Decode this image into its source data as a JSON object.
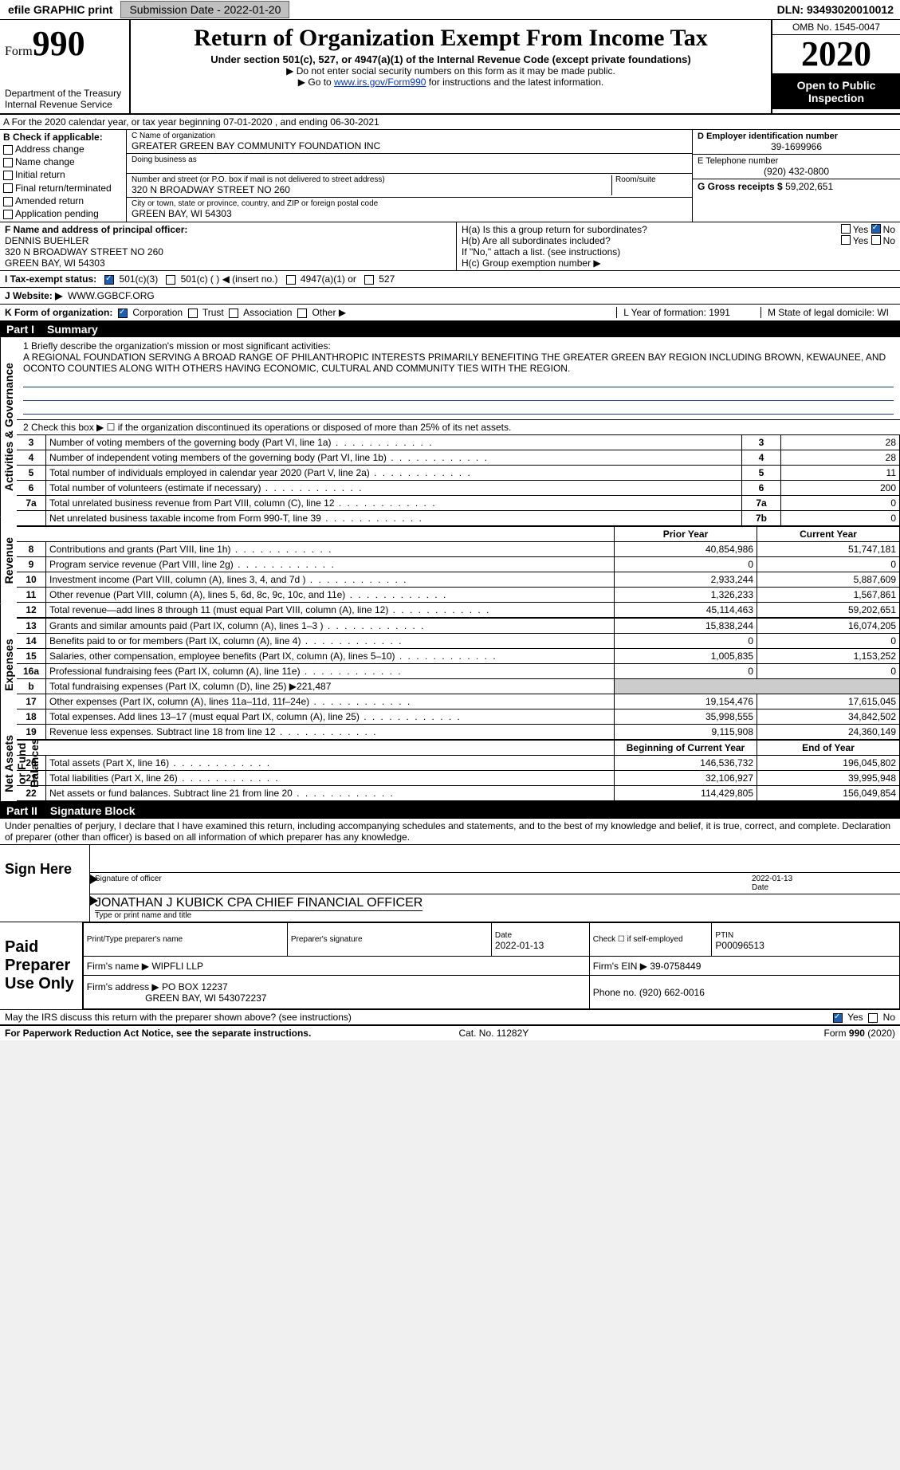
{
  "topbar": {
    "efile": "efile GRAPHIC print",
    "submission_label": "Submission Date - 2022-01-20",
    "dln": "DLN: 93493020010012"
  },
  "header": {
    "form_prefix": "Form",
    "form_number": "990",
    "title": "Return of Organization Exempt From Income Tax",
    "subtitle": "Under section 501(c), 527, or 4947(a)(1) of the Internal Revenue Code (except private foundations)",
    "ssn_note": "▶ Do not enter social security numbers on this form as it may be made public.",
    "goto_prefix": "▶ Go to ",
    "goto_link": "www.irs.gov/Form990",
    "goto_suffix": " for instructions and the latest information.",
    "dept": "Department of the Treasury\nInternal Revenue Service",
    "omb": "OMB No. 1545-0047",
    "year": "2020",
    "open": "Open to Public Inspection"
  },
  "row_a": "A   For the 2020 calendar year, or tax year beginning 07-01-2020    , and ending 06-30-2021",
  "box_b": {
    "title": "B Check if applicable:",
    "items": [
      "Address change",
      "Name change",
      "Initial return",
      "Final return/terminated",
      "Amended return",
      "Application pending"
    ]
  },
  "box_c": {
    "name_label": "C Name of organization",
    "name": "GREATER GREEN BAY COMMUNITY FOUNDATION INC",
    "dba_label": "Doing business as",
    "addr_label": "Number and street (or P.O. box if mail is not delivered to street address)",
    "room_label": "Room/suite",
    "addr": "320 N BROADWAY STREET NO 260",
    "city_label": "City or town, state or province, country, and ZIP or foreign postal code",
    "city": "GREEN BAY, WI  54303"
  },
  "box_d": {
    "label": "D Employer identification number",
    "value": "39-1699966"
  },
  "box_e": {
    "label": "E Telephone number",
    "value": "(920) 432-0800"
  },
  "box_g": {
    "label": "G Gross receipts $",
    "value": "59,202,651"
  },
  "box_f": {
    "label": "F  Name and address of principal officer:",
    "name": "DENNIS BUEHLER",
    "addr1": "320 N BROADWAY STREET NO 260",
    "addr2": "GREEN BAY, WI  54303"
  },
  "box_h": {
    "ha": "H(a)  Is this a group return for subordinates?",
    "ha_yes": "Yes",
    "ha_no": "No",
    "hb": "H(b)  Are all subordinates included?",
    "hb_note": "If \"No,\" attach a list. (see instructions)",
    "hc": "H(c)  Group exemption number ▶"
  },
  "tax_status": {
    "label": "I    Tax-exempt status:",
    "opts": [
      "501(c)(3)",
      "501(c) (  ) ◀ (insert no.)",
      "4947(a)(1) or",
      "527"
    ],
    "checked_index": 0
  },
  "website": {
    "label": "J   Website: ▶",
    "value": "WWW.GGBCF.ORG"
  },
  "k_org": {
    "label": "K Form of organization:",
    "opts": [
      "Corporation",
      "Trust",
      "Association",
      "Other ▶"
    ],
    "checked_index": 0,
    "l": "L Year of formation: 1991",
    "m": "M State of legal domicile: WI"
  },
  "part1": {
    "title": "Part I",
    "subtitle": "Summary",
    "mission_label": "1  Briefly describe the organization's mission or most significant activities:",
    "mission": "A REGIONAL FOUNDATION SERVING A BROAD RANGE OF PHILANTHROPIC INTERESTS PRIMARILY BENEFITING THE GREATER GREEN BAY REGION INCLUDING BROWN, KEWAUNEE, AND OCONTO COUNTIES ALONG WITH OTHERS HAVING ECONOMIC, CULTURAL AND COMMUNITY TIES WITH THE REGION.",
    "line2": "2   Check this box ▶ ☐  if the organization discontinued its operations or disposed of more than 25% of its net assets.",
    "governance_rows": [
      {
        "n": "3",
        "label": "Number of voting members of the governing body (Part VI, line 1a)",
        "box": "3",
        "val": "28"
      },
      {
        "n": "4",
        "label": "Number of independent voting members of the governing body (Part VI, line 1b)",
        "box": "4",
        "val": "28"
      },
      {
        "n": "5",
        "label": "Total number of individuals employed in calendar year 2020 (Part V, line 2a)",
        "box": "5",
        "val": "11"
      },
      {
        "n": "6",
        "label": "Total number of volunteers (estimate if necessary)",
        "box": "6",
        "val": "200"
      },
      {
        "n": "7a",
        "label": "Total unrelated business revenue from Part VIII, column (C), line 12",
        "box": "7a",
        "val": "0"
      },
      {
        "n": "",
        "label": "Net unrelated business taxable income from Form 990-T, line 39",
        "box": "7b",
        "val": "0"
      }
    ],
    "col_headers": {
      "prior": "Prior Year",
      "current": "Current Year"
    },
    "revenue_rows": [
      {
        "n": "8",
        "label": "Contributions and grants (Part VIII, line 1h)",
        "prior": "40,854,986",
        "current": "51,747,181"
      },
      {
        "n": "9",
        "label": "Program service revenue (Part VIII, line 2g)",
        "prior": "0",
        "current": "0"
      },
      {
        "n": "10",
        "label": "Investment income (Part VIII, column (A), lines 3, 4, and 7d )",
        "prior": "2,933,244",
        "current": "5,887,609"
      },
      {
        "n": "11",
        "label": "Other revenue (Part VIII, column (A), lines 5, 6d, 8c, 9c, 10c, and 11e)",
        "prior": "1,326,233",
        "current": "1,567,861"
      },
      {
        "n": "12",
        "label": "Total revenue—add lines 8 through 11 (must equal Part VIII, column (A), line 12)",
        "prior": "45,114,463",
        "current": "59,202,651"
      }
    ],
    "expense_rows": [
      {
        "n": "13",
        "label": "Grants and similar amounts paid (Part IX, column (A), lines 1–3 )",
        "prior": "15,838,244",
        "current": "16,074,205"
      },
      {
        "n": "14",
        "label": "Benefits paid to or for members (Part IX, column (A), line 4)",
        "prior": "0",
        "current": "0"
      },
      {
        "n": "15",
        "label": "Salaries, other compensation, employee benefits (Part IX, column (A), lines 5–10)",
        "prior": "1,005,835",
        "current": "1,153,252"
      },
      {
        "n": "16a",
        "label": "Professional fundraising fees (Part IX, column (A), line 11e)",
        "prior": "0",
        "current": "0"
      },
      {
        "n": "b",
        "label": "Total fundraising expenses (Part IX, column (D), line 25) ▶221,487",
        "prior": "",
        "current": "",
        "shaded": true
      },
      {
        "n": "17",
        "label": "Other expenses (Part IX, column (A), lines 11a–11d, 11f–24e)",
        "prior": "19,154,476",
        "current": "17,615,045"
      },
      {
        "n": "18",
        "label": "Total expenses. Add lines 13–17 (must equal Part IX, column (A), line 25)",
        "prior": "35,998,555",
        "current": "34,842,502"
      },
      {
        "n": "19",
        "label": "Revenue less expenses. Subtract line 18 from line 12",
        "prior": "9,115,908",
        "current": "24,360,149"
      }
    ],
    "net_headers": {
      "prior": "Beginning of Current Year",
      "current": "End of Year"
    },
    "net_rows": [
      {
        "n": "20",
        "label": "Total assets (Part X, line 16)",
        "prior": "146,536,732",
        "current": "196,045,802"
      },
      {
        "n": "21",
        "label": "Total liabilities (Part X, line 26)",
        "prior": "32,106,927",
        "current": "39,995,948"
      },
      {
        "n": "22",
        "label": "Net assets or fund balances. Subtract line 21 from line 20",
        "prior": "114,429,805",
        "current": "156,049,854"
      }
    ],
    "vlabels": {
      "gov": "Activities & Governance",
      "rev": "Revenue",
      "exp": "Expenses",
      "net": "Net Assets or Fund Balances"
    }
  },
  "part2": {
    "title": "Part II",
    "subtitle": "Signature Block"
  },
  "penalties": "Under penalties of perjury, I declare that I have examined this return, including accompanying schedules and statements, and to the best of my knowledge and belief, it is true, correct, and complete. Declaration of preparer (other than officer) is based on all information of which preparer has any knowledge.",
  "sign_here": {
    "label": "Sign Here",
    "sig_of_officer": "Signature of officer",
    "date": "2022-01-13",
    "date_label": "Date",
    "name": "JONATHAN J KUBICK CPA  CHIEF FINANCIAL OFFICER",
    "name_label": "Type or print name and title"
  },
  "paid_preparer": {
    "label": "Paid Preparer Use Only",
    "print_label": "Print/Type preparer's name",
    "sig_label": "Preparer's signature",
    "date_label": "Date",
    "date": "2022-01-13",
    "check_label": "Check ☐ if self-employed",
    "ptin_label": "PTIN",
    "ptin": "P00096513",
    "firm_name_label": "Firm's name    ▶",
    "firm_name": "WIPFLI LLP",
    "firm_ein_label": "Firm's EIN ▶",
    "firm_ein": "39-0758449",
    "firm_addr_label": "Firm's address ▶",
    "firm_addr1": "PO BOX 12237",
    "firm_addr2": "GREEN BAY, WI  543072237",
    "phone_label": "Phone no.",
    "phone": "(920) 662-0016"
  },
  "discuss": {
    "q": "May the IRS discuss this return with the preparer shown above? (see instructions)",
    "yes": "Yes",
    "no": "No"
  },
  "footer": {
    "left": "For Paperwork Reduction Act Notice, see the separate instructions.",
    "cat": "Cat. No. 11282Y",
    "form": "Form 990 (2020)"
  }
}
